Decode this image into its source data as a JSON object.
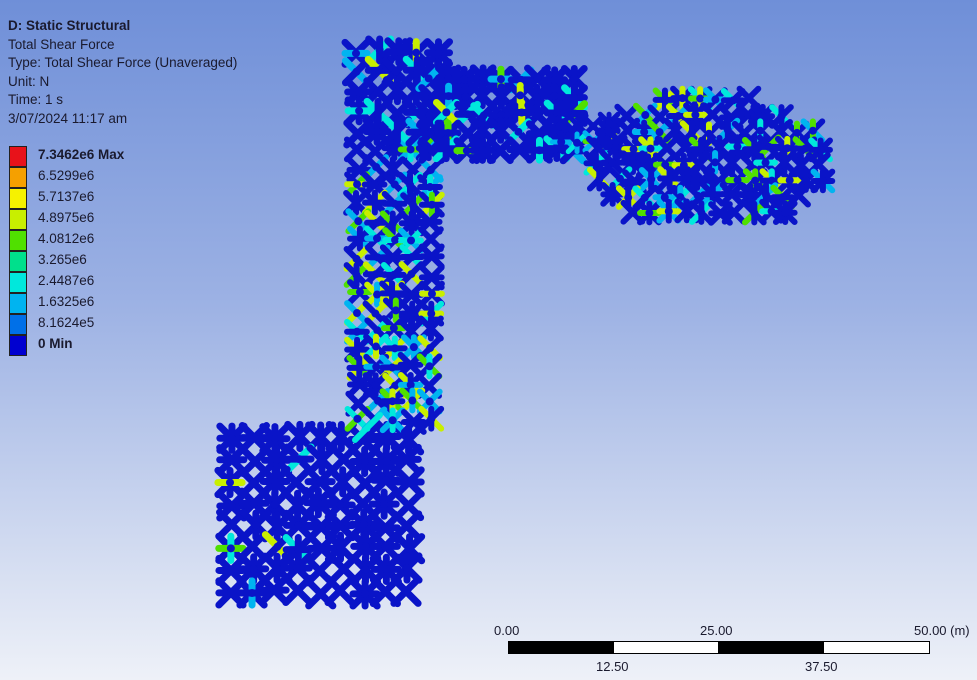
{
  "result": {
    "analysis": "D: Static Structural",
    "quantity": "Total Shear Force",
    "type": "Type: Total Shear Force (Unaveraged)",
    "unit": "Unit: N",
    "time": "Time: 1 s",
    "date": "3/07/2024 11:17 am"
  },
  "legend": {
    "entries": [
      {
        "label": "7.3462e6 Max",
        "color": "#e8121a",
        "bold": true
      },
      {
        "label": "6.5299e6",
        "color": "#f5a000"
      },
      {
        "label": "5.7137e6",
        "color": "#f6f200"
      },
      {
        "label": "4.8975e6",
        "color": "#c8ef00"
      },
      {
        "label": "4.0812e6",
        "color": "#50e000"
      },
      {
        "label": "3.265e6",
        "color": "#00e08c"
      },
      {
        "label": "2.4487e6",
        "color": "#00e8dc"
      },
      {
        "label": "1.6325e6",
        "color": "#00b4f0"
      },
      {
        "label": "8.1624e5",
        "color": "#0070e8"
      },
      {
        "label": "0 Min",
        "color": "#0000d0",
        "bold": true
      }
    ]
  },
  "scale_bar": {
    "top_ticks": [
      "0.00",
      "25.00",
      "50.00 (m)"
    ],
    "bottom_ticks": [
      "12.50",
      "37.50"
    ]
  },
  "model": {
    "base_color": "#0a14c8",
    "highlight_colors": [
      "#00b4f0",
      "#00e8dc",
      "#50e000",
      "#c8ef00"
    ]
  }
}
